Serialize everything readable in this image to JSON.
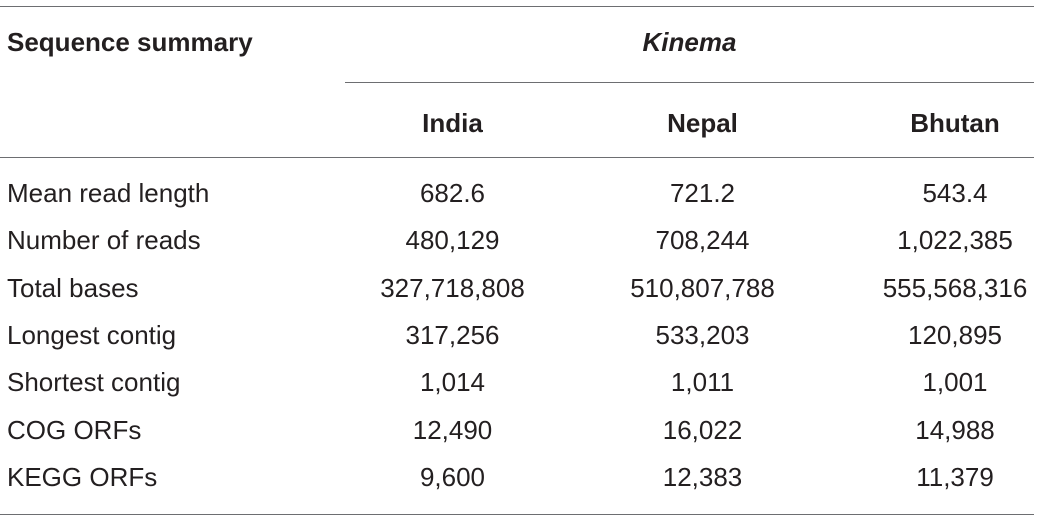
{
  "table": {
    "stub_header": "Sequence summary",
    "spanner_header": "Kinema",
    "columns": [
      "India",
      "Nepal",
      "Bhutan"
    ],
    "rows": [
      {
        "label": "Mean read length",
        "values": [
          "682.6",
          "721.2",
          "543.4"
        ]
      },
      {
        "label": "Number of reads",
        "values": [
          "480,129",
          "708,244",
          "1,022,385"
        ]
      },
      {
        "label": "Total bases",
        "values": [
          "327,718,808",
          "510,807,788",
          "555,568,316"
        ]
      },
      {
        "label": "Longest contig",
        "values": [
          "317,256",
          "533,203",
          "120,895"
        ]
      },
      {
        "label": "Shortest contig",
        "values": [
          "1,014",
          "1,011",
          "1,001"
        ]
      },
      {
        "label": "COG ORFs",
        "values": [
          "12,490",
          "16,022",
          "14,988"
        ]
      },
      {
        "label": "KEGG ORFs",
        "values": [
          "9,600",
          "12,383",
          "11,379"
        ]
      }
    ]
  }
}
